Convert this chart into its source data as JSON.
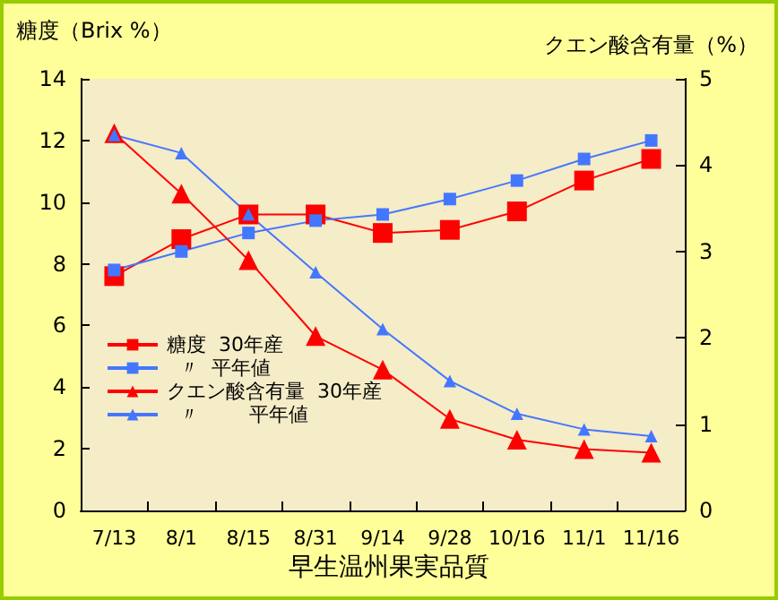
{
  "chart_data": {
    "type": "line",
    "xlabel": "早生温州果実品質",
    "ylabel": "糖度（Brix %）",
    "y2label": "クエン酸含有量（%）",
    "categories": [
      "7/13",
      "8/1",
      "8/15",
      "8/31",
      "9/14",
      "9/28",
      "10/16",
      "11/1",
      "11/16"
    ],
    "ylim": [
      0,
      14
    ],
    "yticks": [
      0,
      2,
      4,
      6,
      8,
      10,
      12,
      14
    ],
    "y2lim": [
      0,
      5
    ],
    "y2ticks": [
      0,
      1,
      2,
      3,
      4,
      5
    ],
    "grid": false,
    "legend": "left",
    "line_style": "solid",
    "series": [
      {
        "name": "糖度  30年産",
        "color": "#ff0000",
        "marker": "square",
        "values": [
          7.6,
          8.8,
          9.6,
          9.6,
          9.0,
          9.1,
          9.7,
          10.7,
          11.4
        ]
      },
      {
        "name": "  〃  平年値",
        "color": "#4477ff",
        "marker": "square",
        "values": [
          7.8,
          8.4,
          9.0,
          9.4,
          9.6,
          10.1,
          10.7,
          11.4,
          12.0
        ]
      },
      {
        "name": "クエン酸含有量  30年産",
        "color": "#ff0000",
        "marker": "triangle",
        "axis": "y2",
        "values": [
          4.37,
          3.67,
          2.9,
          2.02,
          1.63,
          1.06,
          0.82,
          0.71,
          0.67
        ]
      },
      {
        "name": "  〃        平年値",
        "color": "#4477ff",
        "marker": "triangle",
        "axis": "y2",
        "values": [
          4.35,
          4.14,
          3.43,
          2.76,
          2.1,
          1.5,
          1.12,
          0.94,
          0.86
        ]
      }
    ]
  }
}
